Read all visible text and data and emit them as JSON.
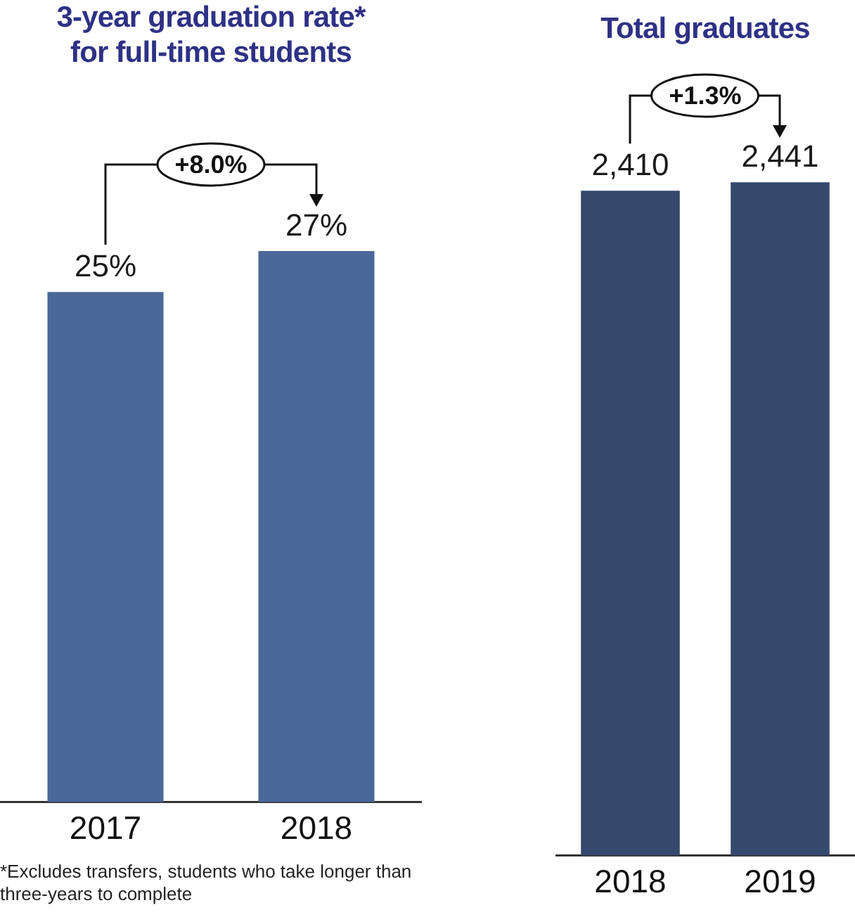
{
  "chart_data": [
    {
      "type": "bar",
      "title": "3-year graduation rate*\nfor full-time students",
      "categories": [
        "2017",
        "2018"
      ],
      "values": [
        25,
        27
      ],
      "value_labels": [
        "25%",
        "27%"
      ],
      "color": "#4a6898",
      "annotations": [
        "+8.0%",
        "*Excludes transfers, students who take longer than three-years to complete"
      ]
    },
    {
      "type": "bar",
      "title": "Total graduates",
      "categories": [
        "2018",
        "2019"
      ],
      "values": [
        2410,
        2441
      ],
      "value_labels": [
        "2,410",
        "2,441"
      ],
      "color": "#34496c",
      "annotations": [
        "+1.3%"
      ]
    }
  ]
}
